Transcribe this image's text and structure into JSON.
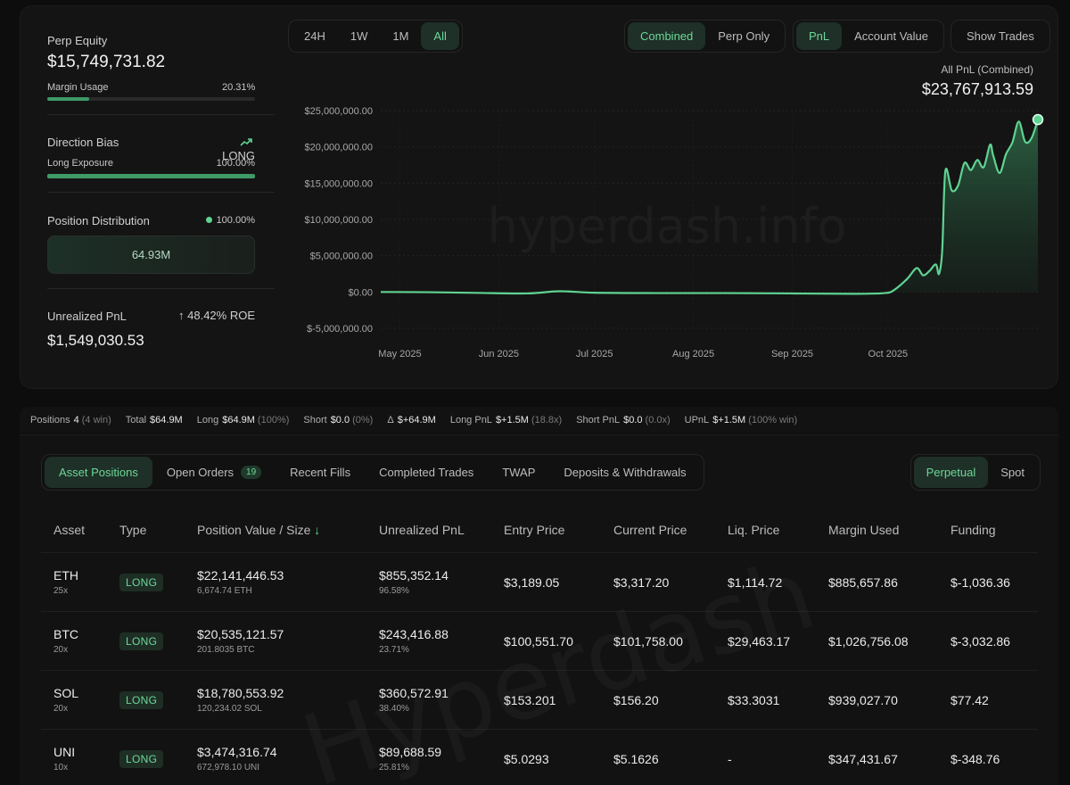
{
  "summary": {
    "perp_equity_label": "Perp Equity",
    "perp_equity_value": "$15,749,731.82",
    "margin_usage_label": "Margin Usage",
    "margin_usage_value": "20.31%",
    "margin_usage_fraction": 0.2031,
    "direction_bias_label": "Direction Bias",
    "direction_bias_value": "LONG",
    "long_exposure_label": "Long Exposure",
    "long_exposure_value": "100.00%",
    "long_exposure_fraction": 1.0,
    "position_distribution_label": "Position Distribution",
    "position_distribution_pct": "100.00%",
    "position_distribution_box": "64.93M",
    "unrealized_pnl_label": "Unrealized PnL",
    "unrealized_roe": "48.42% ROE",
    "unrealized_pnl_value": "$1,549,030.53"
  },
  "chart_controls": {
    "ranges": [
      "24H",
      "1W",
      "1M",
      "All"
    ],
    "active_range": "All",
    "modes": [
      "Combined",
      "Perp Only"
    ],
    "active_mode": "Combined",
    "metrics": [
      "PnL",
      "Account Value"
    ],
    "active_metric": "PnL",
    "show_trades": "Show Trades"
  },
  "chart_header": {
    "label": "All PnL (Combined)",
    "value": "$23,767,913.59"
  },
  "watermark": "hyperdash.info",
  "chart_data": {
    "type": "area",
    "title": "",
    "xlabel": "",
    "ylabel": "",
    "ylim": [
      -5000000,
      25000000
    ],
    "y_ticks": [
      "$25,000,000.00",
      "$20,000,000.00",
      "$15,000,000.00",
      "$10,000,000.00",
      "$5,000,000.00",
      "$0.00",
      "$-5,000,000.00"
    ],
    "x_ticks": [
      "May 2025",
      "Jun 2025",
      "Jul 2025",
      "Aug 2025",
      "Sep 2025",
      "Oct 2025"
    ],
    "grid": true,
    "series": [
      {
        "values": [
          {
            "x": "2025-04-25",
            "y": 0
          },
          {
            "x": "2025-05-10",
            "y": -30000
          },
          {
            "x": "2025-05-25",
            "y": -120000
          },
          {
            "x": "2025-06-10",
            "y": -200000
          },
          {
            "x": "2025-06-20",
            "y": 100000
          },
          {
            "x": "2025-07-01",
            "y": -100000
          },
          {
            "x": "2025-07-20",
            "y": -150000
          },
          {
            "x": "2025-08-10",
            "y": -150000
          },
          {
            "x": "2025-09-01",
            "y": -200000
          },
          {
            "x": "2025-09-20",
            "y": -250000
          },
          {
            "x": "2025-09-30",
            "y": -150000
          },
          {
            "x": "2025-10-03",
            "y": 300000
          },
          {
            "x": "2025-10-07",
            "y": 1800000
          },
          {
            "x": "2025-10-10",
            "y": 3300000
          },
          {
            "x": "2025-10-12",
            "y": 2300000
          },
          {
            "x": "2025-10-14",
            "y": 2900000
          },
          {
            "x": "2025-10-16",
            "y": 3800000
          },
          {
            "x": "2025-10-17",
            "y": 2500000
          },
          {
            "x": "2025-10-18",
            "y": 5700000
          },
          {
            "x": "2025-10-19",
            "y": 16700000
          },
          {
            "x": "2025-10-21",
            "y": 14000000
          },
          {
            "x": "2025-10-23",
            "y": 14700000
          },
          {
            "x": "2025-10-25",
            "y": 17800000
          },
          {
            "x": "2025-10-27",
            "y": 16800000
          },
          {
            "x": "2025-10-29",
            "y": 18200000
          },
          {
            "x": "2025-10-31",
            "y": 17200000
          },
          {
            "x": "2025-11-02",
            "y": 20300000
          },
          {
            "x": "2025-11-03",
            "y": 18800000
          },
          {
            "x": "2025-11-05",
            "y": 16400000
          },
          {
            "x": "2025-11-07",
            "y": 19000000
          },
          {
            "x": "2025-11-09",
            "y": 20600000
          },
          {
            "x": "2025-11-11",
            "y": 23500000
          },
          {
            "x": "2025-11-13",
            "y": 20700000
          },
          {
            "x": "2025-11-15",
            "y": 21200000
          },
          {
            "x": "2025-11-17",
            "y": 23767913.59
          }
        ]
      }
    ]
  },
  "stats": [
    {
      "k": "Positions",
      "v": "4",
      "p": "(4 win)"
    },
    {
      "k": "Total",
      "v": "$64.9M",
      "p": ""
    },
    {
      "k": "Long",
      "v": "$64.9M",
      "p": "(100%)"
    },
    {
      "k": "Short",
      "v": "$0.0",
      "p": "(0%)"
    },
    {
      "k": "Δ",
      "v": "$+64.9M",
      "p": "",
      "green": true
    },
    {
      "k": "Long PnL",
      "v": "$+1.5M",
      "p": "(18.8x)",
      "green": true
    },
    {
      "k": "Short PnL",
      "v": "$0.0",
      "p": "(0.0x)",
      "green": true
    },
    {
      "k": "UPnL",
      "v": "$+1.5M",
      "p": "(100% win)",
      "green": true
    }
  ],
  "tabs": {
    "items": [
      "Asset Positions",
      "Open Orders",
      "Recent Fills",
      "Completed Trades",
      "TWAP",
      "Deposits & Withdrawals"
    ],
    "active": "Asset Positions",
    "open_orders_count": "19",
    "modes": [
      "Perpetual",
      "Spot"
    ],
    "active_mode": "Perpetual"
  },
  "table": {
    "headers": [
      "Asset",
      "Type",
      "Position Value / Size",
      "Unrealized PnL",
      "Entry Price",
      "Current Price",
      "Liq. Price",
      "Margin Used",
      "Funding"
    ],
    "rows": [
      {
        "asset": "ETH",
        "lev": "25x",
        "type": "LONG",
        "value": "$22,141,446.53",
        "size": "6,674.74 ETH",
        "upnl": "$855,352.14",
        "upnl_pct": "96.58%",
        "entry": "$3,189.05",
        "current": "$3,317.20",
        "liq": "$1,114.72",
        "margin": "$885,657.86",
        "funding": "$-1,036.36",
        "funding_neg": true
      },
      {
        "asset": "BTC",
        "lev": "20x",
        "type": "LONG",
        "value": "$20,535,121.57",
        "size": "201.8035 BTC",
        "upnl": "$243,416.88",
        "upnl_pct": "23.71%",
        "entry": "$100,551.70",
        "current": "$101,758.00",
        "liq": "$29,463.17",
        "margin": "$1,026,756.08",
        "funding": "$-3,032.86",
        "funding_neg": true
      },
      {
        "asset": "SOL",
        "lev": "20x",
        "type": "LONG",
        "value": "$18,780,553.92",
        "size": "120,234.02 SOL",
        "upnl": "$360,572.91",
        "upnl_pct": "38.40%",
        "entry": "$153.201",
        "current": "$156.20",
        "liq": "$33.3031",
        "margin": "$939,027.70",
        "funding": "$77.42",
        "funding_neg": false
      },
      {
        "asset": "UNI",
        "lev": "10x",
        "type": "LONG",
        "value": "$3,474,316.74",
        "size": "672,978.10 UNI",
        "upnl": "$89,688.59",
        "upnl_pct": "25.81%",
        "entry": "$5.0293",
        "current": "$5.1626",
        "liq": "-",
        "margin": "$347,431.67",
        "funding": "$-348.76",
        "funding_neg": true
      }
    ]
  },
  "colors": {
    "accent": "#5fd392",
    "negative": "#ee6a5f",
    "background": "#0d0d0d",
    "panel": "#141414"
  }
}
